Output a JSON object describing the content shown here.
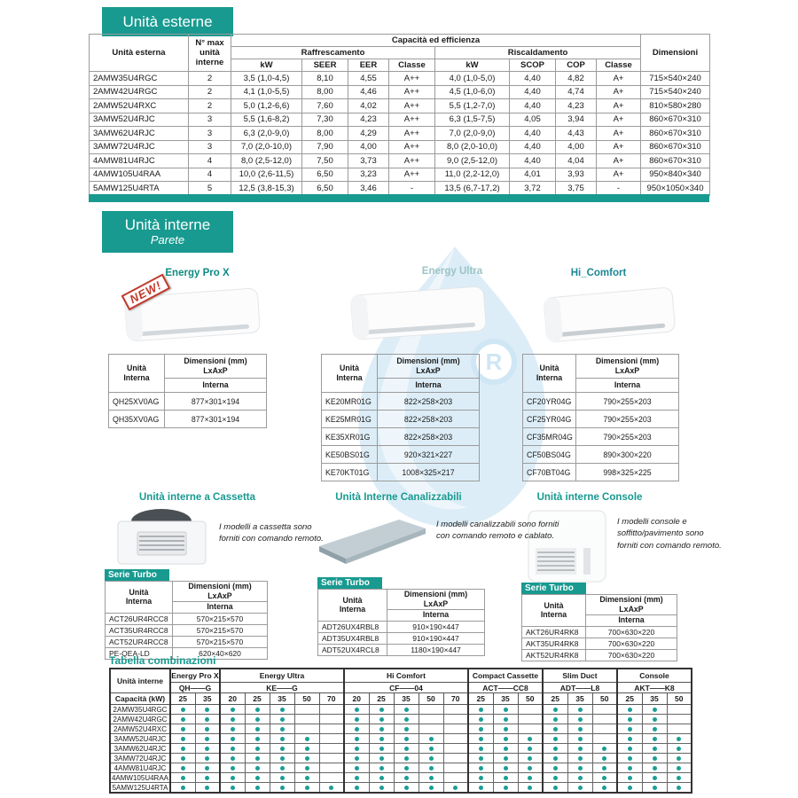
{
  "colors": {
    "teal": "#189a90",
    "dot_teal": "#1a9e96",
    "badge_red": "#c0392b",
    "watermark_blue": "#dcedf7"
  },
  "outdoor": {
    "title": "Unità esterne",
    "header": {
      "unit": "Unità esterna",
      "max_units": "N° max\nunità\ninterne",
      "capacity": "Capacità ed efficienza",
      "cooling": "Raffrescamento",
      "heating": "Riscaldamento",
      "kw": "kW",
      "seer": "SEER",
      "eer": "EER",
      "classe": "Classe",
      "scop": "SCOP",
      "cop": "COP",
      "dimensions": "Dimensioni"
    },
    "rows": [
      [
        "2AMW35U4RGC",
        "2",
        "3,5 (1,0-4,5)",
        "8,10",
        "4,55",
        "A++",
        "4,0 (1,0-5,0)",
        "4,40",
        "4,82",
        "A+",
        "715×540×240"
      ],
      [
        "2AMW42U4RGC",
        "2",
        "4,1 (1,0-5,5)",
        "8,00",
        "4,46",
        "A++",
        "4,5 (1,0-6,0)",
        "4,40",
        "4,74",
        "A+",
        "715×540×240"
      ],
      [
        "2AMW52U4RXC",
        "2",
        "5,0 (1,2-6,6)",
        "7,60",
        "4,02",
        "A++",
        "5,5 (1,2-7,0)",
        "4,40",
        "4,23",
        "A+",
        "810×580×280"
      ],
      [
        "3AMW52U4RJC",
        "3",
        "5,5 (1,6-8,2)",
        "7,30",
        "4,23",
        "A++",
        "6,3 (1,5-7,5)",
        "4,05",
        "3,94",
        "A+",
        "860×670×310"
      ],
      [
        "3AMW62U4RJC",
        "3",
        "6,3 (2,0-9,0)",
        "8,00",
        "4,29",
        "A++",
        "7,0 (2,0-9,0)",
        "4,40",
        "4,43",
        "A+",
        "860×670×310"
      ],
      [
        "3AMW72U4RJC",
        "3",
        "7,0 (2,0-10,0)",
        "7,90",
        "4,00",
        "A++",
        "8,0 (2,0-10,0)",
        "4,40",
        "4,00",
        "A+",
        "860×670×310"
      ],
      [
        "4AMW81U4RJC",
        "4",
        "8,0 (2,5-12,0)",
        "7,50",
        "3,73",
        "A++",
        "9,0 (2,5-12,0)",
        "4,40",
        "4,04",
        "A+",
        "860×670×310"
      ],
      [
        "4AMW105U4RAA",
        "4",
        "10,0 (2,6-11,5)",
        "6,50",
        "3,23",
        "A++",
        "11,0 (2,2-12,0)",
        "4,01",
        "3,93",
        "A+",
        "950×840×340"
      ],
      [
        "5AMW125U4RTA",
        "5",
        "12,5 (3,8-15,3)",
        "6,50",
        "3,46",
        "-",
        "13,5 (6,7-17,2)",
        "3,72",
        "3,75",
        "-",
        "950×1050×340"
      ]
    ]
  },
  "indoor_wall": {
    "title": "Unità interne",
    "subtitle": "Parete",
    "table_header": {
      "unit": "Unità\nInterna",
      "dims": "Dimensioni (mm)\nLxAxP",
      "sub": "Interna"
    },
    "products": [
      {
        "name": "Energy Pro X",
        "badge": "NEW!",
        "rows": [
          [
            "QH25XV0AG",
            "877×301×194"
          ],
          [
            "QH35XV0AG",
            "877×301×194"
          ]
        ]
      },
      {
        "name": "Energy Ultra",
        "rows": [
          [
            "KE20MR01G",
            "822×258×203"
          ],
          [
            "KE25MR01G",
            "822×258×203"
          ],
          [
            "KE35XR01G",
            "822×258×203"
          ],
          [
            "KE50BS01G",
            "920×321×227"
          ],
          [
            "KE70KT01G",
            "1008×325×217"
          ]
        ]
      },
      {
        "name": "Hi_Comfort",
        "rows": [
          [
            "CF20YR04G",
            "790×255×203"
          ],
          [
            "CF25YR04G",
            "790×255×203"
          ],
          [
            "CF35MR04G",
            "790×255×203"
          ],
          [
            "CF50BS04G",
            "890×300×220"
          ],
          [
            "CF70BT04G",
            "998×325×225"
          ]
        ]
      }
    ]
  },
  "indoor_other": {
    "table_header": {
      "unit": "Unità\nInterna",
      "dims": "Dimensioni (mm)\nLxAxP",
      "sub": "Interna"
    },
    "series_label": "Serie Turbo",
    "sections": [
      {
        "title": "Unità interne a Cassetta",
        "description": "I modelli a cassetta sono forniti con comando remoto.",
        "rows": [
          [
            "ACT26UR4RCC8",
            "570×215×570"
          ],
          [
            "ACT35UR4RCC8",
            "570×215×570"
          ],
          [
            "ACT52UR4RCC8",
            "570×215×570"
          ],
          [
            "PE-QEA-LD",
            "620×40×620"
          ]
        ]
      },
      {
        "title": "Unità Interne Canalizzabili",
        "description": "I modelli canalizzabili sono forniti con comando remoto e cablato.",
        "rows": [
          [
            "ADT26UX4RBL8",
            "910×190×447"
          ],
          [
            "ADT35UX4RBL8",
            "910×190×447"
          ],
          [
            "ADT52UX4RCL8",
            "1180×190×447"
          ]
        ]
      },
      {
        "title": "Unità interne Console",
        "description": "I modelli console e soffitto/pavimento sono forniti con comando remoto.",
        "rows": [
          [
            "AKT26UR4RK8",
            "700×630×220"
          ],
          [
            "AKT35UR4RK8",
            "700×630×220"
          ],
          [
            "AKT52UR4RK8",
            "700×630×220"
          ]
        ]
      }
    ]
  },
  "combinations": {
    "title": "Tabella combinazioni",
    "row_header": "Unità interne",
    "capacity_label": "Capacità (kW)",
    "groups": [
      {
        "name": "Energy Pro X",
        "code": "QH——G",
        "capacities": [
          "25",
          "35"
        ]
      },
      {
        "name": "Energy Ultra",
        "code": "KE——G",
        "capacities": [
          "20",
          "25",
          "35",
          "50",
          "70"
        ]
      },
      {
        "name": "Hi Comfort",
        "code": "CF——04",
        "capacities": [
          "20",
          "25",
          "35",
          "50",
          "70"
        ]
      },
      {
        "name": "Compact Cassette",
        "code": "ACT——CC8",
        "capacities": [
          "25",
          "35",
          "50"
        ]
      },
      {
        "name": "Slim Duct",
        "code": "ADT——L8",
        "capacities": [
          "25",
          "35",
          "50"
        ]
      },
      {
        "name": "Console",
        "code": "AKT——K8",
        "capacities": [
          "25",
          "35",
          "50"
        ]
      }
    ],
    "rows": [
      {
        "model": "2AMW35U4RGC",
        "dots": [
          1,
          1,
          1,
          1,
          1,
          0,
          0,
          1,
          1,
          1,
          0,
          0,
          1,
          1,
          0,
          1,
          1,
          0,
          1,
          1,
          0
        ]
      },
      {
        "model": "2AMW42U4RGC",
        "dots": [
          1,
          1,
          1,
          1,
          1,
          0,
          0,
          1,
          1,
          1,
          0,
          0,
          1,
          1,
          0,
          1,
          1,
          0,
          1,
          1,
          0
        ]
      },
      {
        "model": "2AMW52U4RXC",
        "dots": [
          1,
          1,
          1,
          1,
          1,
          0,
          0,
          1,
          1,
          1,
          0,
          0,
          1,
          1,
          0,
          1,
          1,
          0,
          1,
          1,
          0
        ]
      },
      {
        "model": "3AMW52U4RJC",
        "dots": [
          1,
          1,
          1,
          1,
          1,
          1,
          0,
          1,
          1,
          1,
          1,
          0,
          1,
          1,
          1,
          1,
          1,
          0,
          1,
          1,
          1
        ]
      },
      {
        "model": "3AMW62U4RJC",
        "dots": [
          1,
          1,
          1,
          1,
          1,
          1,
          0,
          1,
          1,
          1,
          1,
          0,
          1,
          1,
          1,
          1,
          1,
          1,
          1,
          1,
          1
        ]
      },
      {
        "model": "3AMW72U4RJC",
        "dots": [
          1,
          1,
          1,
          1,
          1,
          1,
          0,
          1,
          1,
          1,
          1,
          0,
          1,
          1,
          1,
          1,
          1,
          1,
          1,
          1,
          1
        ]
      },
      {
        "model": "4AMW81U4RJC",
        "dots": [
          1,
          1,
          1,
          1,
          1,
          1,
          0,
          1,
          1,
          1,
          1,
          0,
          1,
          1,
          1,
          1,
          1,
          1,
          1,
          1,
          1
        ]
      },
      {
        "model": "4AMW105U4RAA",
        "dots": [
          1,
          1,
          1,
          1,
          1,
          1,
          0,
          1,
          1,
          1,
          1,
          0,
          1,
          1,
          1,
          1,
          1,
          1,
          1,
          1,
          1
        ]
      },
      {
        "model": "5AMW125U4RTA",
        "dots": [
          1,
          1,
          1,
          1,
          1,
          1,
          1,
          1,
          1,
          1,
          1,
          1,
          1,
          1,
          1,
          1,
          1,
          1,
          1,
          1,
          1
        ]
      }
    ]
  },
  "watermark": {
    "symbol": "R"
  }
}
